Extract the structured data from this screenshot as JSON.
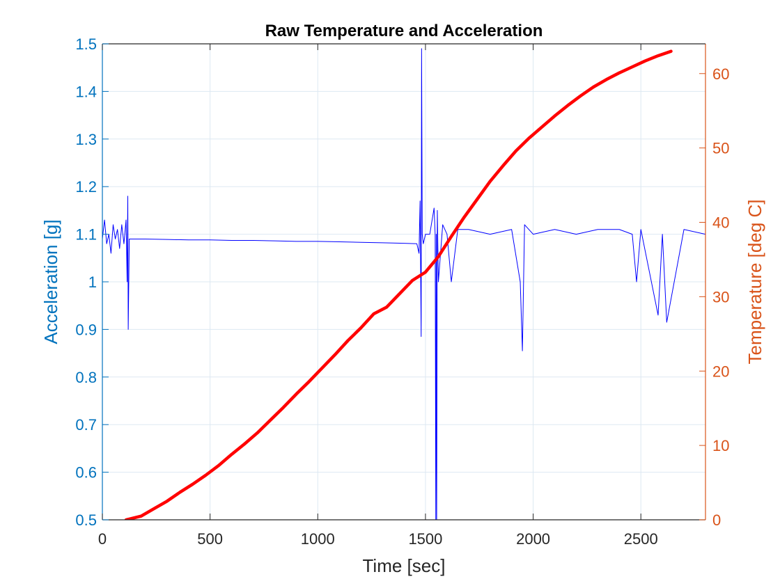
{
  "chart_data": {
    "type": "line",
    "title": "Raw Temperature and Acceleration",
    "xlabel": "Time [sec]",
    "ylabel_left": "Acceleration [g]",
    "ylabel_right": "Temperature [deg C]",
    "xlim": [
      0,
      2800
    ],
    "ylim_left": [
      0.5,
      1.5
    ],
    "ylim_right": [
      0,
      64
    ],
    "xticks": [
      0,
      500,
      1000,
      1500,
      2000,
      2500
    ],
    "xtick_labels": [
      "0",
      "500",
      "1000",
      "1500",
      "2000",
      "2500"
    ],
    "yticks_left": [
      0.5,
      0.6,
      0.7,
      0.8,
      0.9,
      1.0,
      1.1,
      1.2,
      1.3,
      1.4,
      1.5
    ],
    "ytick_labels_left": [
      "0.5",
      "0.6",
      "0.7",
      "0.8",
      "0.9",
      "1",
      "1.1",
      "1.2",
      "1.3",
      "1.4",
      "1.5"
    ],
    "yticks_right": [
      0,
      10,
      20,
      30,
      40,
      50,
      60
    ],
    "ytick_labels_right": [
      "0",
      "10",
      "20",
      "30",
      "40",
      "50",
      "60"
    ],
    "grid": true,
    "colors": {
      "left_axis": "#0072BD",
      "right_axis": "#D95319",
      "acceleration_line": "#0000FF",
      "temperature_line": "#FF0000",
      "grid": "#DDE8F2",
      "title": "#000000"
    },
    "series": [
      {
        "axis": "left",
        "style": "thin noisy line",
        "x": [
          0,
          10,
          20,
          30,
          40,
          50,
          60,
          70,
          80,
          90,
          100,
          110,
          115,
          118,
          120,
          125,
          200,
          300,
          400,
          500,
          600,
          700,
          800,
          900,
          1000,
          1100,
          1200,
          1300,
          1400,
          1460,
          1470,
          1475,
          1480,
          1482,
          1485,
          1490,
          1500,
          1520,
          1540,
          1545,
          1548,
          1550,
          1552,
          1555,
          1560,
          1580,
          1600,
          1620,
          1650,
          1700,
          1800,
          1900,
          1940,
          1950,
          1960,
          2000,
          2100,
          2200,
          2300,
          2400,
          2460,
          2480,
          2500,
          2580,
          2600,
          2620,
          2700,
          2800
        ],
        "values": [
          1.09,
          1.13,
          1.08,
          1.1,
          1.06,
          1.12,
          1.09,
          1.11,
          1.07,
          1.12,
          1.08,
          1.13,
          1.0,
          1.18,
          0.9,
          1.09,
          1.09,
          1.089,
          1.088,
          1.088,
          1.087,
          1.087,
          1.086,
          1.085,
          1.085,
          1.084,
          1.083,
          1.082,
          1.081,
          1.08,
          1.06,
          1.17,
          0.885,
          1.49,
          1.1,
          1.08,
          1.1,
          1.1,
          1.155,
          1.1,
          0.5,
          1.1,
          0.5,
          1.15,
          1.0,
          1.12,
          1.1,
          1.0,
          1.11,
          1.11,
          1.1,
          1.11,
          1.0,
          0.855,
          1.12,
          1.1,
          1.11,
          1.1,
          1.11,
          1.11,
          1.1,
          1.0,
          1.11,
          0.93,
          1.1,
          0.915,
          1.11,
          1.1
        ]
      },
      {
        "axis": "right",
        "style": "thick line",
        "x": [
          110,
          180,
          240,
          300,
          360,
          420,
          480,
          540,
          600,
          660,
          720,
          780,
          840,
          900,
          960,
          1020,
          1080,
          1140,
          1200,
          1260,
          1320,
          1380,
          1440,
          1500,
          1560,
          1620,
          1680,
          1740,
          1800,
          1860,
          1920,
          1980,
          2040,
          2100,
          2160,
          2220,
          2280,
          2340,
          2400,
          2460,
          2520,
          2580,
          2640
        ],
        "values": [
          0,
          0.5,
          1.5,
          2.5,
          3.7,
          4.8,
          6,
          7.3,
          8.8,
          10.2,
          11.7,
          13.4,
          15.1,
          16.9,
          18.6,
          20.4,
          22.2,
          24.1,
          25.8,
          27.7,
          28.6,
          30.4,
          32.2,
          33.3,
          35.4,
          38.1,
          40.7,
          43.1,
          45.5,
          47.6,
          49.6,
          51.3,
          52.8,
          54.3,
          55.7,
          57,
          58.2,
          59.2,
          60.1,
          60.9,
          61.7,
          62.4,
          63
        ]
      }
    ]
  }
}
